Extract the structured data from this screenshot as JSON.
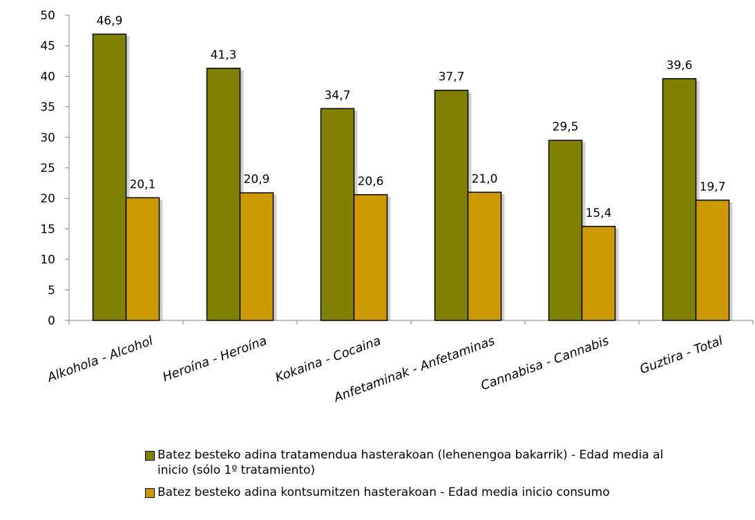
{
  "chart_data": {
    "type": "bar",
    "categories": [
      "Alkohola - Alcohol",
      "Heroína - Heroína",
      "Kokaina - Cocaina",
      "Anfetaminak - Anfetaminas",
      "Cannabisa - Cannabis",
      "Guztira - Total"
    ],
    "series": [
      {
        "name": "Batez besteko adina tratamendua hasterakoan (lehenengoa bakarrik) - Edad media al inicio (sólo 1º tratamiento)",
        "color": "#808000",
        "values": [
          46.9,
          41.3,
          34.7,
          37.7,
          29.5,
          39.6
        ],
        "labels": [
          "46,9",
          "41,3",
          "34,7",
          "37,7",
          "29,5",
          "39,6"
        ]
      },
      {
        "name": "Batez besteko adina kontsumitzen hasterakoan - Edad media inicio consumo",
        "color": "#CC9900",
        "values": [
          20.1,
          20.9,
          20.6,
          21.0,
          15.4,
          19.7
        ],
        "labels": [
          "20,1",
          "20,9",
          "20,6",
          "21,0",
          "15,4",
          "19,7"
        ]
      }
    ],
    "ylim": [
      0,
      50
    ],
    "yticks": [
      "0",
      "5",
      "10",
      "15",
      "20",
      "25",
      "30",
      "35",
      "40",
      "45",
      "50"
    ],
    "legend_position": "bottom",
    "grid": false
  }
}
